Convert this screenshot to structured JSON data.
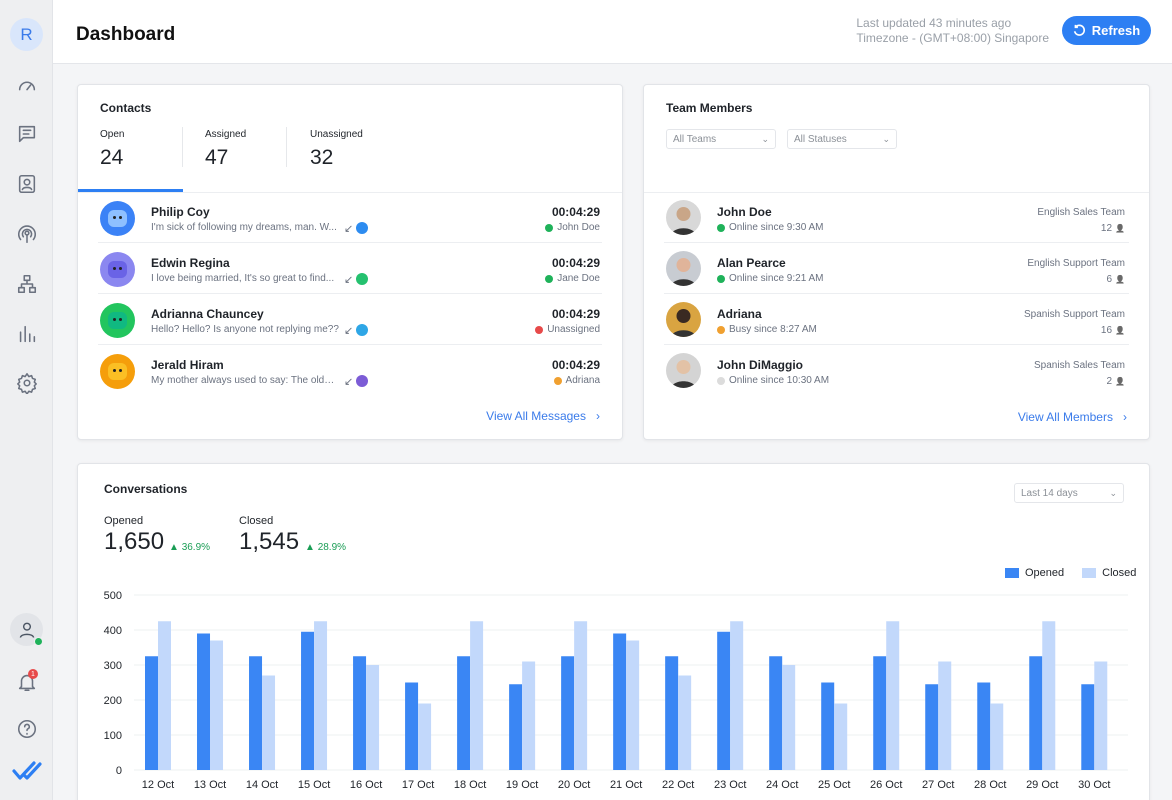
{
  "sidebar": {
    "avatar_initial": "R",
    "icons": [
      "speedometer-icon",
      "chat-icon",
      "contacts-icon",
      "broadcast-icon",
      "sitemap-icon",
      "reports-icon",
      "settings-icon"
    ],
    "bell_badge": "1"
  },
  "header": {
    "title": "Dashboard",
    "last_updated": "Last updated 43 minutes ago",
    "timezone": "Timezone - (GMT+08:00) Singapore",
    "refresh_label": "Refresh"
  },
  "contacts": {
    "title": "Contacts",
    "tabs": [
      {
        "label": "Open",
        "count": "24"
      },
      {
        "label": "Assigned",
        "count": "47"
      },
      {
        "label": "Unassigned",
        "count": "32"
      }
    ],
    "rows": [
      {
        "name": "Philip Coy",
        "message": "I'm sick of following my dreams, man. W...",
        "time": "00:04:29",
        "agent": "John Doe",
        "status_color": "#1fb25a",
        "channel": "messenger",
        "channel_color": "#2d8cf0",
        "avatar_color": "#3b82f6",
        "face_color": "#8ec0ff"
      },
      {
        "name": "Edwin Regina",
        "message": "I love being married, It's so great to find...",
        "time": "00:04:29",
        "agent": "Jane Doe",
        "status_color": "#1fb25a",
        "channel": "whatsapp",
        "channel_color": "#25c16f",
        "avatar_color": "#8b87f0",
        "face_color": "#6a63e6"
      },
      {
        "name": "Adrianna Chauncey",
        "message": "Hello? Hello? Is anyone not replying me??",
        "time": "00:04:29",
        "agent": "Unassigned",
        "status_color": "#e74a4a",
        "channel": "telegram",
        "channel_color": "#2ea6e6",
        "avatar_color": "#22c55e",
        "face_color": "#10b981"
      },
      {
        "name": "Jerald Hiram",
        "message": "My mother always used to say: The older...",
        "time": "00:04:29",
        "agent": "Adriana",
        "status_color": "#f0a030",
        "channel": "viber",
        "channel_color": "#7c5cd6",
        "avatar_color": "#f59e0b",
        "face_color": "#fbbf24"
      }
    ],
    "direction_glyph": "↙",
    "view_all": "View All Messages"
  },
  "team": {
    "title": "Team Members",
    "filter_team": "All Teams",
    "filter_status": "All Statuses",
    "rows": [
      {
        "name": "John Doe",
        "status": "Online since 9:30 AM",
        "status_color": "#1fb25a",
        "team": "English Sales Team",
        "count": "12",
        "skin": "#c9a688",
        "bg": "#d8d8d8"
      },
      {
        "name": "Alan Pearce",
        "status": "Online since 9:21 AM",
        "status_color": "#1fb25a",
        "team": "English Support Team",
        "count": "6",
        "skin": "#e0b49a",
        "bg": "#c8ccd2"
      },
      {
        "name": "Adriana",
        "status": "Busy since 8:27 AM",
        "status_color": "#f0a030",
        "team": "Spanish Support Team",
        "count": "16",
        "skin": "#3a2a22",
        "bg": "#d9a441"
      },
      {
        "name": "John DiMaggio",
        "status": "Online since 10:30 AM",
        "status_color": "#dcdcdc",
        "team": "Spanish Sales Team",
        "count": "2",
        "skin": "#e3c2a6",
        "bg": "#d4d4d4"
      }
    ],
    "view_all": "View All Members"
  },
  "conversations": {
    "title": "Conversations",
    "range": "Last 14 days",
    "opened_label": "Opened",
    "opened_value": "1,650",
    "opened_change": "36.9%",
    "closed_label": "Closed",
    "closed_value": "1,545",
    "closed_change": "28.9%",
    "legend_opened": "Opened",
    "legend_closed": "Closed"
  },
  "colors": {
    "accent": "#2d7ff3",
    "opened_bar": "#3a86f4",
    "closed_bar": "#c2d8fb",
    "positive": "#1a9d55"
  },
  "chart_data": {
    "type": "bar",
    "categories": [
      "12 Oct",
      "13 Oct",
      "14 Oct",
      "15 Oct",
      "16 Oct",
      "17 Oct",
      "18 Oct",
      "19 Oct",
      "20 Oct",
      "21 Oct",
      "22 Oct",
      "23 Oct",
      "24 Oct",
      "25 Oct",
      "26 Oct",
      "27 Oct",
      "28 Oct",
      "29 Oct",
      "30 Oct"
    ],
    "series": [
      {
        "name": "Opened",
        "values": [
          325,
          390,
          325,
          395,
          325,
          250,
          325,
          245,
          325,
          390,
          325,
          395,
          325,
          250,
          325,
          245,
          250,
          325,
          245
        ]
      },
      {
        "name": "Closed",
        "values": [
          425,
          370,
          270,
          425,
          300,
          190,
          425,
          310,
          425,
          370,
          270,
          425,
          300,
          190,
          425,
          310,
          190,
          425,
          310
        ]
      }
    ],
    "yticks": [
      0,
      100,
      200,
      300,
      400,
      500
    ],
    "ylim": [
      0,
      500
    ],
    "legend": "top-right",
    "grid": true
  }
}
